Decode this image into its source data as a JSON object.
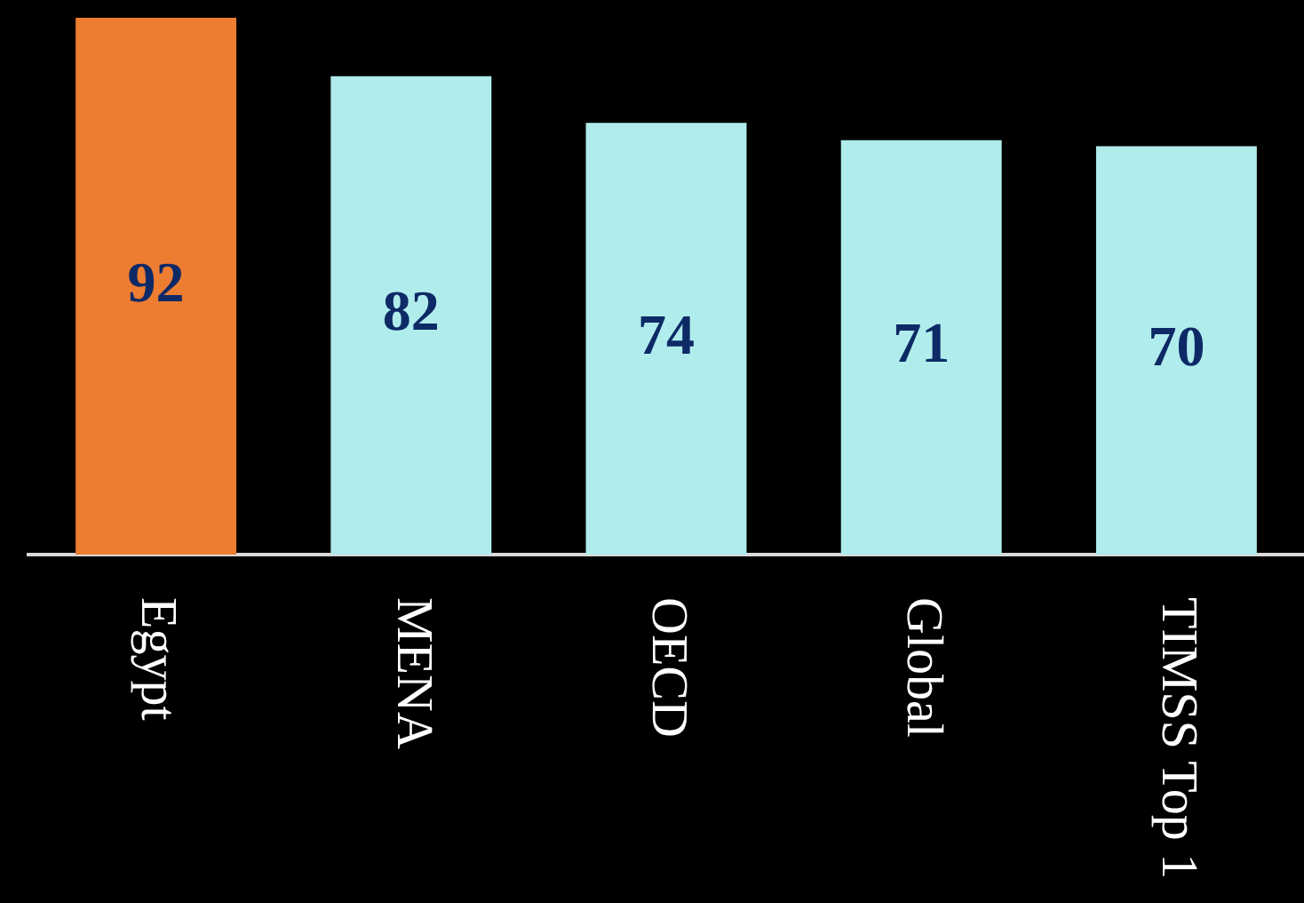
{
  "chart_data": {
    "type": "bar",
    "categories": [
      "Egypt",
      "MENA",
      "OECD",
      "Global",
      "TIMSS Top 1"
    ],
    "values": [
      92,
      82,
      74,
      71,
      70
    ],
    "colors": [
      "#ed7d31",
      "#b0ecec",
      "#b0ecec",
      "#b0ecec",
      "#b0ecec"
    ],
    "ylim": [
      0,
      92
    ],
    "data_labels": true,
    "legend": false,
    "tick_labels": "x"
  }
}
